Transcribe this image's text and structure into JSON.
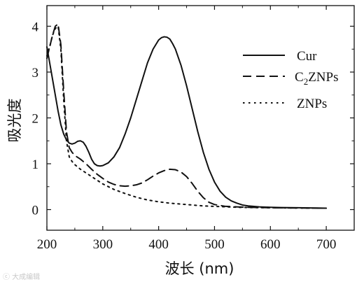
{
  "chart_data": {
    "type": "line",
    "xlabel": "波长 (nm)",
    "ylabel": "吸光度",
    "xlim": [
      200,
      750
    ],
    "ylim": [
      -0.45,
      4.45
    ],
    "xticks": [
      200,
      300,
      400,
      500,
      600,
      700
    ],
    "yticks": [
      0,
      1,
      2,
      3,
      4
    ],
    "legend_position": "top-right",
    "grid": false,
    "series": [
      {
        "name": "Cur",
        "style": "solid",
        "x": [
          200,
          205,
          210,
          215,
          220,
          225,
          230,
          235,
          240,
          245,
          250,
          255,
          260,
          265,
          270,
          275,
          280,
          285,
          290,
          295,
          300,
          310,
          320,
          330,
          340,
          350,
          360,
          370,
          380,
          390,
          400,
          405,
          410,
          415,
          420,
          425,
          430,
          440,
          450,
          460,
          470,
          480,
          490,
          500,
          510,
          520,
          530,
          540,
          550,
          560,
          580,
          600,
          620,
          650,
          700
        ],
        "y": [
          3.55,
          3.2,
          2.85,
          2.5,
          2.15,
          1.85,
          1.65,
          1.52,
          1.45,
          1.43,
          1.45,
          1.49,
          1.5,
          1.47,
          1.38,
          1.25,
          1.1,
          1.0,
          0.96,
          0.95,
          0.96,
          1.02,
          1.15,
          1.35,
          1.65,
          2.0,
          2.4,
          2.8,
          3.2,
          3.5,
          3.7,
          3.75,
          3.77,
          3.76,
          3.72,
          3.62,
          3.5,
          3.15,
          2.7,
          2.2,
          1.7,
          1.25,
          0.88,
          0.6,
          0.4,
          0.27,
          0.19,
          0.14,
          0.1,
          0.08,
          0.06,
          0.05,
          0.045,
          0.04,
          0.03
        ]
      },
      {
        "name": "C2ZNPs",
        "style": "dashed",
        "x": [
          200,
          205,
          210,
          215,
          220,
          225,
          230,
          235,
          240,
          245,
          250,
          260,
          270,
          280,
          290,
          300,
          310,
          320,
          330,
          340,
          350,
          360,
          370,
          380,
          390,
          400,
          410,
          420,
          430,
          440,
          450,
          460,
          470,
          480,
          490,
          500,
          520,
          540,
          560,
          600,
          650,
          700
        ],
        "y": [
          3.3,
          3.55,
          3.8,
          4.0,
          4.05,
          3.6,
          2.6,
          1.7,
          1.35,
          1.25,
          1.18,
          1.1,
          1.0,
          0.88,
          0.77,
          0.68,
          0.6,
          0.55,
          0.52,
          0.51,
          0.52,
          0.54,
          0.58,
          0.65,
          0.73,
          0.8,
          0.85,
          0.88,
          0.87,
          0.82,
          0.72,
          0.57,
          0.4,
          0.26,
          0.16,
          0.11,
          0.07,
          0.06,
          0.05,
          0.04,
          0.035,
          0.03
        ]
      },
      {
        "name": "ZNPs",
        "style": "dotted",
        "x": [
          200,
          205,
          210,
          215,
          220,
          225,
          230,
          235,
          240,
          245,
          250,
          260,
          270,
          280,
          290,
          300,
          320,
          340,
          360,
          380,
          400,
          420,
          440,
          460,
          480,
          500,
          520,
          540,
          560,
          600,
          650,
          700
        ],
        "y": [
          3.35,
          3.55,
          3.8,
          3.95,
          4.0,
          3.5,
          2.4,
          1.5,
          1.15,
          1.05,
          0.98,
          0.88,
          0.8,
          0.72,
          0.64,
          0.56,
          0.44,
          0.35,
          0.27,
          0.21,
          0.17,
          0.14,
          0.12,
          0.1,
          0.08,
          0.07,
          0.06,
          0.05,
          0.045,
          0.04,
          0.035,
          0.03
        ]
      }
    ]
  },
  "legend": {
    "items": [
      {
        "key": "Cur",
        "label": "Cur",
        "style": "solid"
      },
      {
        "key": "C2ZNPs",
        "label_main": "C",
        "label_sub": "2",
        "label_rest": "ZNPs",
        "style": "dashed"
      },
      {
        "key": "ZNPs",
        "label": "ZNPs",
        "style": "dotted"
      }
    ]
  },
  "watermark": "ⓒ 大成编辑"
}
